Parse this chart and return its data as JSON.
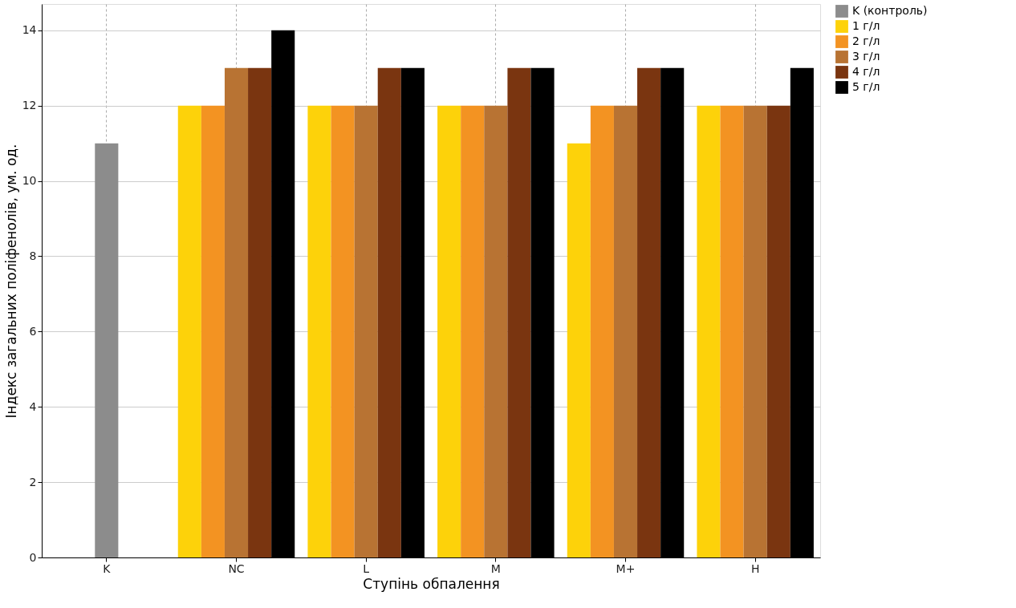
{
  "chart_data": {
    "type": "bar",
    "xlabel": "Ступінь обпалення",
    "ylabel": "Індекс загальних поліфенолів, ум. од.",
    "categories": [
      "K",
      "NC",
      "L",
      "M",
      "M+",
      "H"
    ],
    "series": [
      {
        "name": "K (контроль)",
        "color": "#8c8c8c",
        "values": [
          11,
          null,
          null,
          null,
          null,
          null
        ]
      },
      {
        "name": "1 г/л",
        "color": "#fdd20a",
        "values": [
          null,
          12,
          12,
          12,
          11,
          12
        ]
      },
      {
        "name": "2 г/л",
        "color": "#f39322",
        "values": [
          null,
          12,
          12,
          12,
          12,
          12
        ]
      },
      {
        "name": "3 г/л",
        "color": "#b87333",
        "values": [
          null,
          13,
          12,
          12,
          12,
          12
        ]
      },
      {
        "name": "4 г/л",
        "color": "#7a3510",
        "values": [
          null,
          13,
          13,
          13,
          13,
          12
        ]
      },
      {
        "name": "5 г/л",
        "color": "#000000",
        "values": [
          null,
          14,
          13,
          13,
          13,
          13
        ]
      }
    ],
    "ylim": [
      0,
      14.7
    ],
    "yticks": [
      0,
      2,
      4,
      6,
      8,
      10,
      12,
      14
    ],
    "grid": true,
    "legend": "right"
  }
}
